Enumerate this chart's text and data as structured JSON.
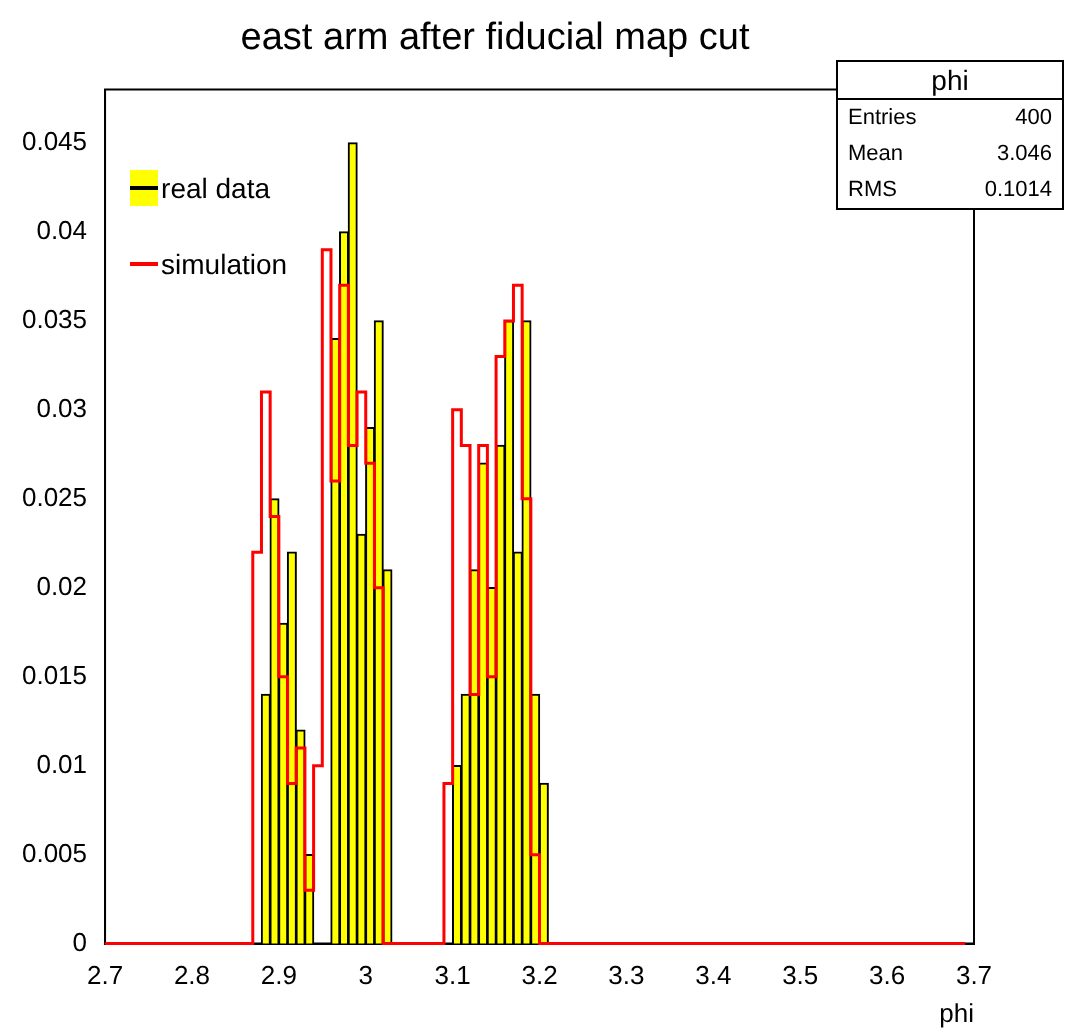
{
  "chart_data": {
    "type": "histogram",
    "title": "east arm after fiducial map cut",
    "xlabel": "phi",
    "bins": [
      2.7,
      2.71,
      2.72,
      2.73,
      2.74,
      2.75,
      2.76,
      2.77,
      2.78,
      2.79,
      2.8,
      2.81,
      2.82,
      2.83,
      2.84,
      2.85,
      2.86,
      2.87,
      2.88,
      2.89,
      2.9,
      2.91,
      2.92,
      2.93,
      2.94,
      2.95,
      2.96,
      2.97,
      2.98,
      2.99,
      3,
      3.01,
      3.02,
      3.03,
      3.04,
      3.05,
      3.06,
      3.07,
      3.08,
      3.09,
      3.1,
      3.11,
      3.12,
      3.13,
      3.14,
      3.15,
      3.16,
      3.17,
      3.18,
      3.19,
      3.2,
      3.21,
      3.22,
      3.23,
      3.24,
      3.25,
      3.26,
      3.27,
      3.28,
      3.29,
      3.3,
      3.31,
      3.32,
      3.33,
      3.34,
      3.35,
      3.36,
      3.37,
      3.38,
      3.39,
      3.4,
      3.41,
      3.42,
      3.43,
      3.44,
      3.45,
      3.46,
      3.47,
      3.48,
      3.49,
      3.5,
      3.51,
      3.52,
      3.53,
      3.54,
      3.55,
      3.56,
      3.57,
      3.58,
      3.59,
      3.6,
      3.61,
      3.62,
      3.63,
      3.64,
      3.65,
      3.66,
      3.67,
      3.68,
      3.69,
      3.7
    ],
    "series": [
      {
        "name": "real data",
        "color": "#ffff00",
        "values": [
          0,
          0,
          0,
          0,
          0,
          0,
          0,
          0,
          0,
          0,
          0,
          0,
          0,
          0,
          0,
          0,
          0,
          0,
          0.014,
          0.025,
          0.018,
          0.022,
          0.012,
          0.005,
          0,
          0,
          0.034,
          0.04,
          0.045,
          0.023,
          0.029,
          0.035,
          0.021,
          0,
          0,
          0,
          0,
          0,
          0,
          0,
          0.01,
          0.014,
          0.021,
          0.027,
          0.02,
          0.028,
          0.035,
          0.022,
          0.035,
          0.014,
          0.009,
          0,
          0,
          0,
          0,
          0,
          0,
          0,
          0,
          0,
          0,
          0,
          0,
          0,
          0,
          0,
          0,
          0,
          0,
          0,
          0,
          0,
          0,
          0,
          0,
          0,
          0,
          0,
          0,
          0,
          0,
          0,
          0,
          0,
          0,
          0,
          0,
          0,
          0,
          0,
          0,
          0,
          0,
          0,
          0,
          0,
          0,
          0,
          0,
          0
        ]
      },
      {
        "name": "simulation",
        "type": "step",
        "color": "#ff0000",
        "x": [
          2.7,
          2.71,
          2.72,
          2.73,
          2.74,
          2.75,
          2.76,
          2.77,
          2.78,
          2.79,
          2.8,
          2.81,
          2.82,
          2.83,
          2.84,
          2.85,
          2.86,
          2.87,
          2.88,
          2.89,
          2.9,
          2.91,
          2.92,
          2.93,
          2.94,
          2.95,
          2.96,
          2.97,
          2.98,
          2.99,
          3,
          3.01,
          3.02,
          3.03,
          3.04,
          3.05,
          3.06,
          3.07,
          3.08,
          3.09,
          3.1,
          3.11,
          3.12,
          3.13,
          3.14,
          3.15,
          3.16,
          3.17,
          3.18,
          3.19,
          3.2,
          3.21,
          3.22,
          3.23,
          3.24,
          3.25,
          3.26,
          3.27,
          3.28,
          3.29,
          3.3,
          3.31,
          3.32,
          3.33,
          3.34,
          3.35,
          3.36,
          3.37,
          3.38,
          3.39,
          3.4,
          3.41,
          3.42,
          3.43,
          3.44,
          3.45,
          3.46,
          3.47,
          3.48,
          3.49,
          3.5,
          3.51,
          3.52,
          3.53,
          3.54,
          3.55,
          3.56,
          3.57,
          3.58,
          3.59,
          3.6,
          3.61,
          3.62,
          3.63,
          3.64,
          3.65,
          3.66,
          3.67,
          3.68,
          3.69
        ],
        "values": [
          0,
          0,
          0,
          0,
          0,
          0,
          0,
          0,
          0,
          0,
          0,
          0,
          0,
          0,
          0,
          0,
          0,
          0,
          0.022,
          0.031,
          0.024,
          0.015,
          0.009,
          0.011,
          0.003,
          0.01,
          0.039,
          0.026,
          0.037,
          0.028,
          0.031,
          0.027,
          0.02,
          0,
          0,
          0,
          0,
          0,
          0,
          0,
          0.009,
          0.03,
          0.028,
          0.014,
          0.028,
          0.015,
          0.033,
          0.035,
          0.037,
          0.025,
          0.005,
          0,
          0,
          0,
          0,
          0,
          0,
          0,
          0,
          0,
          0,
          0,
          0,
          0,
          0,
          0,
          0,
          0,
          0,
          0,
          0,
          0,
          0,
          0,
          0,
          0,
          0,
          0,
          0,
          0,
          0,
          0,
          0,
          0,
          0,
          0,
          0,
          0,
          0,
          0,
          0,
          0,
          0,
          0,
          0,
          0,
          0,
          0,
          0,
          0
        ]
      }
    ],
    "xlim": [
      2.7,
      3.7
    ],
    "xticks": [
      2.7,
      2.8,
      2.9,
      {
        "value": 3,
        "label": "3"
      },
      3.1,
      3.2,
      3.3,
      3.4,
      3.5,
      3.6,
      3.7
    ],
    "ylim": [
      0,
      0.048
    ],
    "yticks": [
      0,
      0.005,
      0.01,
      0.015,
      0.02,
      0.025,
      0.03,
      0.035,
      0.04,
      0.045
    ],
    "grid": false,
    "legend": "top left",
    "annotations": [
      "phi",
      "Entries 400",
      "Mean 3.046",
      "RMS 0.1014"
    ]
  }
}
